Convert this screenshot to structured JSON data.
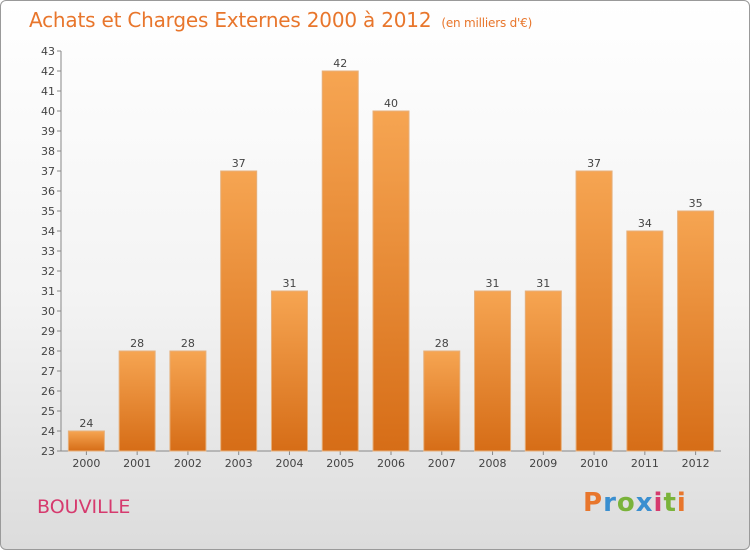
{
  "header": {
    "title": "Achats et Charges Externes 2000 à 2012",
    "subtitle": "(en milliers d'€)"
  },
  "footer": {
    "town": "BOUVILLE",
    "logo": "Proxiti",
    "logo_colors": [
      "#e8762c",
      "#3a8fd0",
      "#7ab33a",
      "#3a8fd0",
      "#d63a6e",
      "#7ab33a",
      "#e8762c"
    ]
  },
  "chart_data": {
    "type": "bar",
    "title": "Achats et Charges Externes 2000 à 2012",
    "subtitle": "(en milliers d'€)",
    "categories": [
      "2000",
      "2001",
      "2002",
      "2003",
      "2004",
      "2005",
      "2006",
      "2007",
      "2008",
      "2009",
      "2010",
      "2011",
      "2012"
    ],
    "values": [
      24,
      28,
      28,
      37,
      31,
      42,
      40,
      28,
      31,
      31,
      37,
      34,
      35
    ],
    "ylim": [
      23,
      43
    ],
    "y_ticks": [
      23,
      24,
      25,
      26,
      27,
      28,
      29,
      30,
      31,
      32,
      33,
      34,
      35,
      36,
      37,
      38,
      39,
      40,
      41,
      42,
      43
    ],
    "grid": false,
    "bar_color": "#e8822e"
  }
}
